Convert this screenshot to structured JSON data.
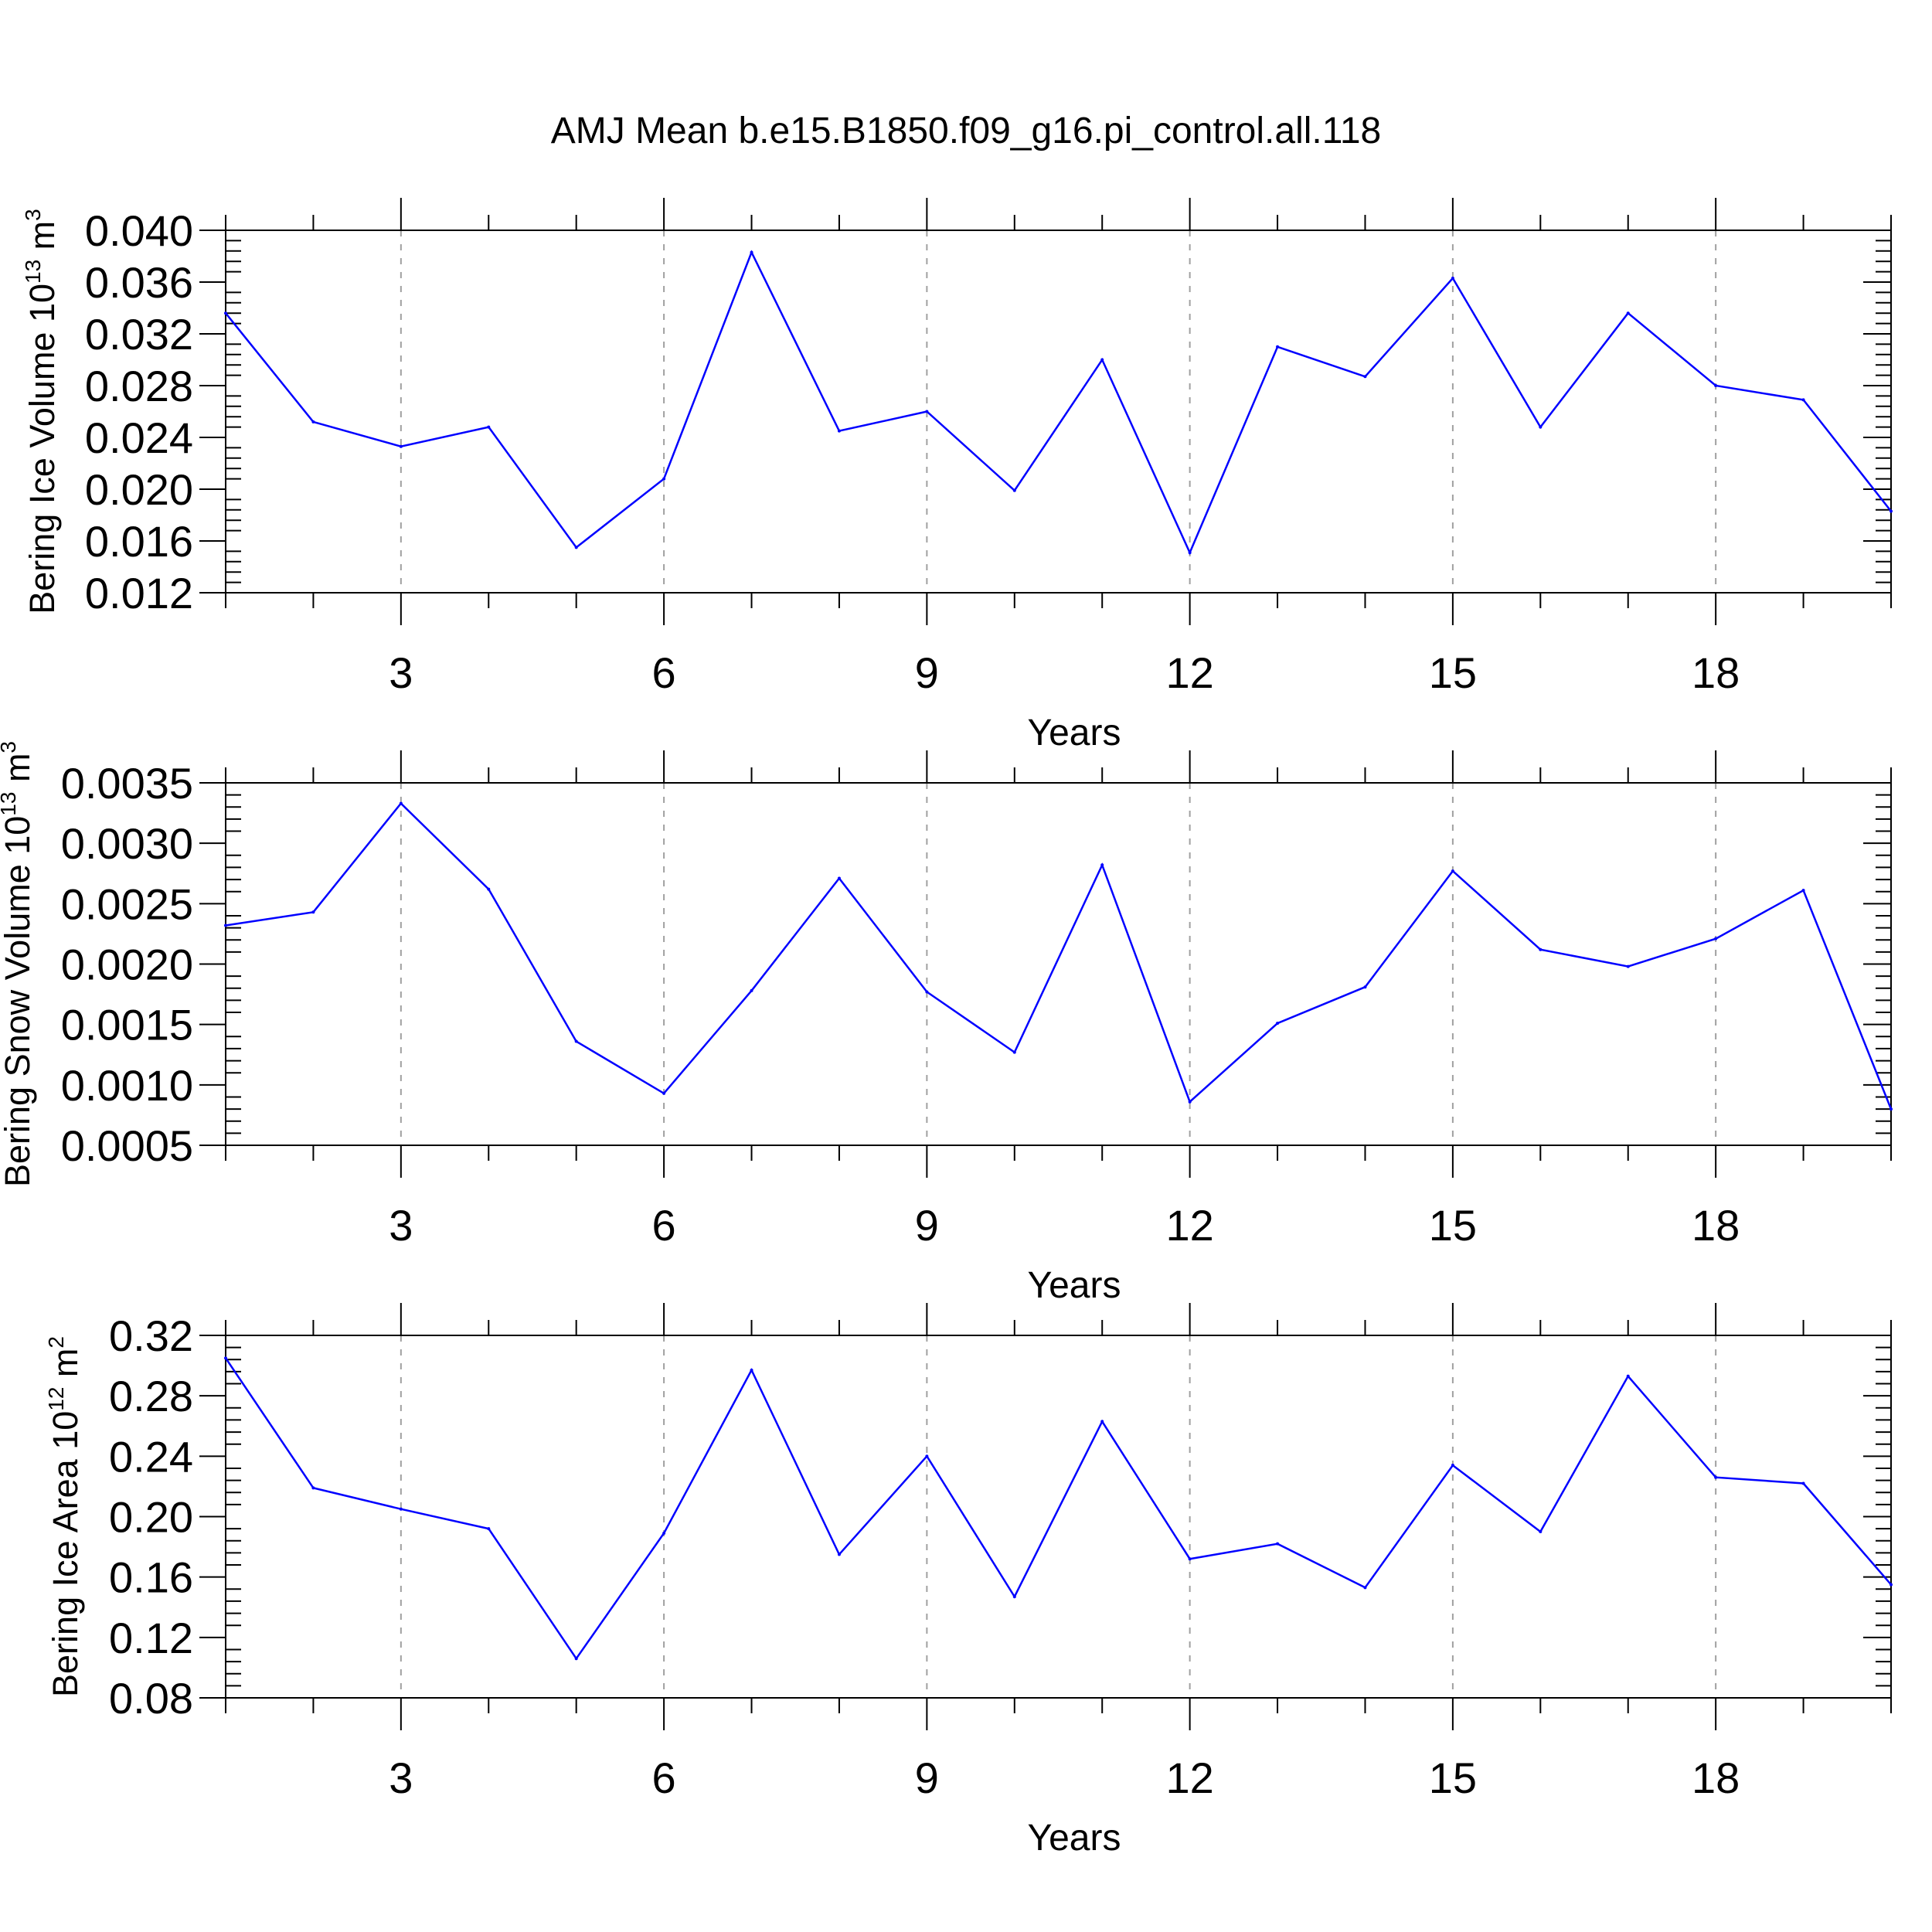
{
  "title": "AMJ Mean b.e15.B1850.f09_g16.pi_control.all.118",
  "colors": {
    "series": "#0000ff",
    "axis": "#000000",
    "grid": "#a0a0a0",
    "background": "#ffffff"
  },
  "chart_data": [
    {
      "type": "line",
      "ylabel": "Bering Ice Volume 10",
      "ylabel_exp": "13",
      "ylabel_unit": " m",
      "ylabel_unit_exp": "3",
      "xlabel": "Years",
      "xlim": [
        1,
        20
      ],
      "ylim": [
        0.012,
        0.04
      ],
      "yticks": [
        0.012,
        0.016,
        0.02,
        0.024,
        0.028,
        0.032,
        0.036,
        0.04
      ],
      "ytick_labels": [
        "0.012",
        "0.016",
        "0.020",
        "0.024",
        "0.028",
        "0.032",
        "0.036",
        "0.040"
      ],
      "xticks": [
        3,
        6,
        9,
        12,
        15,
        18
      ],
      "xtick_labels": [
        "3",
        "6",
        "9",
        "12",
        "15",
        "18"
      ],
      "grid": "vertical dashed at major x ticks",
      "x": [
        1,
        2,
        3,
        4,
        5,
        6,
        7,
        8,
        9,
        10,
        11,
        12,
        13,
        14,
        15,
        16,
        17,
        18,
        19,
        20
      ],
      "values": [
        0.0336,
        0.0252,
        0.0233,
        0.0248,
        0.0155,
        0.0208,
        0.0383,
        0.0245,
        0.026,
        0.0199,
        0.03,
        0.0151,
        0.031,
        0.0287,
        0.0363,
        0.0248,
        0.0336,
        0.028,
        0.0269,
        0.0183
      ]
    },
    {
      "type": "line",
      "ylabel": "Bering Snow Volume 10",
      "ylabel_exp": "13",
      "ylabel_unit": " m",
      "ylabel_unit_exp": "3",
      "xlabel": "Years",
      "xlim": [
        1,
        20
      ],
      "ylim": [
        0.0005,
        0.0035
      ],
      "yticks": [
        0.0005,
        0.001,
        0.0015,
        0.002,
        0.0025,
        0.003,
        0.0035
      ],
      "ytick_labels": [
        "0.0005",
        "0.0010",
        "0.0015",
        "0.0020",
        "0.0025",
        "0.0030",
        "0.0035"
      ],
      "xticks": [
        3,
        6,
        9,
        12,
        15,
        18
      ],
      "xtick_labels": [
        "3",
        "6",
        "9",
        "12",
        "15",
        "18"
      ],
      "grid": "vertical dashed at major x ticks",
      "x": [
        1,
        2,
        3,
        4,
        5,
        6,
        7,
        8,
        9,
        10,
        11,
        12,
        13,
        14,
        15,
        16,
        17,
        18,
        19,
        20
      ],
      "values": [
        0.00232,
        0.00243,
        0.00333,
        0.00262,
        0.00136,
        0.00093,
        0.00178,
        0.00271,
        0.00177,
        0.00127,
        0.00282,
        0.00086,
        0.00151,
        0.00181,
        0.00277,
        0.00212,
        0.00198,
        0.00221,
        0.00261,
        0.0008
      ]
    },
    {
      "type": "line",
      "ylabel": "Bering Ice Area 10",
      "ylabel_exp": "12",
      "ylabel_unit": " m",
      "ylabel_unit_exp": "2",
      "xlabel": "Years",
      "xlim": [
        1,
        20
      ],
      "ylim": [
        0.08,
        0.32
      ],
      "yticks": [
        0.08,
        0.12,
        0.16,
        0.2,
        0.24,
        0.28,
        0.32
      ],
      "ytick_labels": [
        "0.08",
        "0.12",
        "0.16",
        "0.20",
        "0.24",
        "0.28",
        "0.32"
      ],
      "xticks": [
        3,
        6,
        9,
        12,
        15,
        18
      ],
      "xtick_labels": [
        "3",
        "6",
        "9",
        "12",
        "15",
        "18"
      ],
      "grid": "vertical dashed at major x ticks",
      "x": [
        1,
        2,
        3,
        4,
        5,
        6,
        7,
        8,
        9,
        10,
        11,
        12,
        13,
        14,
        15,
        16,
        17,
        18,
        19,
        20
      ],
      "values": [
        0.305,
        0.219,
        0.205,
        0.192,
        0.106,
        0.189,
        0.297,
        0.175,
        0.24,
        0.147,
        0.263,
        0.172,
        0.182,
        0.153,
        0.234,
        0.19,
        0.293,
        0.226,
        0.222,
        0.155
      ]
    }
  ]
}
